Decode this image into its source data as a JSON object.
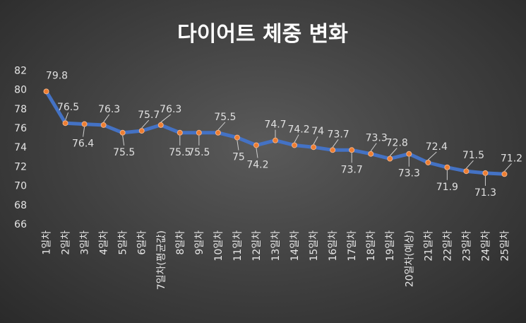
{
  "colors": {
    "line": "#4472c4",
    "marker": "#ed7d31",
    "text": "#e6e6e6"
  },
  "chart_data": {
    "type": "line",
    "title": "다이어트 체중 변화",
    "xlabel": "",
    "ylabel": "",
    "ylim": [
      66,
      82
    ],
    "yticks": [
      66,
      68,
      70,
      72,
      74,
      76,
      78,
      80,
      82
    ],
    "grid": false,
    "legend": "none",
    "categories": [
      "1일차",
      "2일차",
      "3일차",
      "4일차",
      "5일차",
      "6일차",
      "7일차(평균값)",
      "8일차",
      "9일차",
      "10일차",
      "11일차",
      "12일차",
      "13일차",
      "14일차",
      "15일차",
      "16일차",
      "17일차",
      "18일차",
      "19일차",
      "20일차(예상)",
      "21일차",
      "22일차",
      "23일차",
      "24일차",
      "25일차"
    ],
    "series": [
      {
        "values": [
          79.8,
          76.5,
          76.4,
          76.3,
          75.5,
          75.7,
          76.3,
          75.5,
          75.5,
          75.5,
          75,
          74.2,
          74.7,
          74.2,
          74,
          73.7,
          73.7,
          73.3,
          72.8,
          73.3,
          72.4,
          71.9,
          71.5,
          71.3,
          71.2
        ]
      }
    ],
    "data_labels": [
      "79.8",
      "76.5",
      "76.4",
      "76.3",
      "75.5",
      "75.7",
      "76.3",
      "75.5",
      "75.5",
      "75.5",
      "75",
      "74.2",
      "74.7",
      "74.2",
      "74",
      "73.7",
      "73.7",
      "73.3",
      "72.8",
      "73.3",
      "72.4",
      "71.9",
      "71.5",
      "71.3",
      "71.2"
    ]
  }
}
